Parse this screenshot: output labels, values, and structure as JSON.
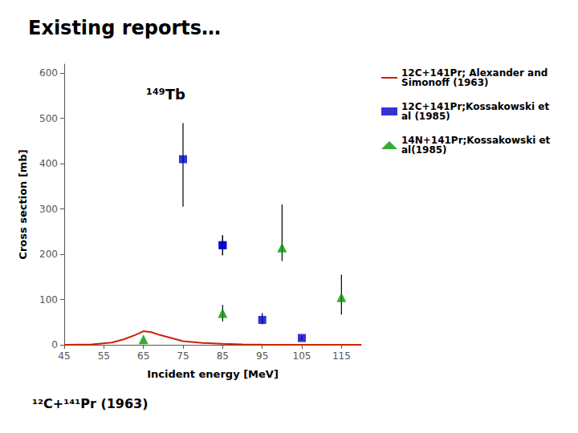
{
  "chart_data": {
    "type": "line",
    "title": "Existing reports…",
    "xlabel": "Incident energy [MeV]",
    "ylabel": "Cross section [mb]",
    "xlim": [
      45,
      120
    ],
    "ylim": [
      0,
      620
    ],
    "xticks": [
      45,
      55,
      65,
      75,
      85,
      95,
      105,
      115
    ],
    "yticks": [
      0,
      100,
      200,
      300,
      400,
      500,
      600
    ],
    "grid": false,
    "legend": "right",
    "annotations": [
      "¹⁴⁹Tb",
      "¹²C+¹⁴¹Pr (1963)"
    ],
    "series": [
      {
        "name": "12C+141Pr; Alexander and\nSimonoff (1963)",
        "type": "line",
        "color": "#cc2200",
        "x": [
          45,
          52,
          57,
          60,
          63,
          65,
          67,
          69,
          72,
          75,
          80,
          85,
          90,
          95,
          100,
          105,
          115,
          120
        ],
        "values": [
          0,
          1,
          5,
          12,
          22,
          30,
          28,
          22,
          15,
          8,
          4,
          2,
          1,
          0.5,
          0.2,
          0.1,
          0.02,
          0.01
        ]
      },
      {
        "name": "12C+141Pr;Kossakowski et\nal (1985)",
        "type": "scatter",
        "marker": "square",
        "color": "#0000cc",
        "x": [
          75,
          85,
          85,
          95,
          105
        ],
        "values": [
          410,
          220,
          220,
          55,
          15
        ],
        "yerr_lo": [
          105,
          22,
          22,
          10,
          5
        ],
        "yerr_hi": [
          80,
          22,
          22,
          15,
          5
        ]
      },
      {
        "name": "14N+141Pr;Kossakowski et\nal(1985)",
        "type": "scatter",
        "marker": "triangle",
        "color": "#009900",
        "x": [
          65,
          85,
          100,
          115
        ],
        "values": [
          12,
          70,
          215,
          105
        ],
        "yerr_lo": [
          0,
          18,
          30,
          38
        ],
        "yerr_hi": [
          0,
          18,
          95,
          50
        ]
      }
    ]
  }
}
